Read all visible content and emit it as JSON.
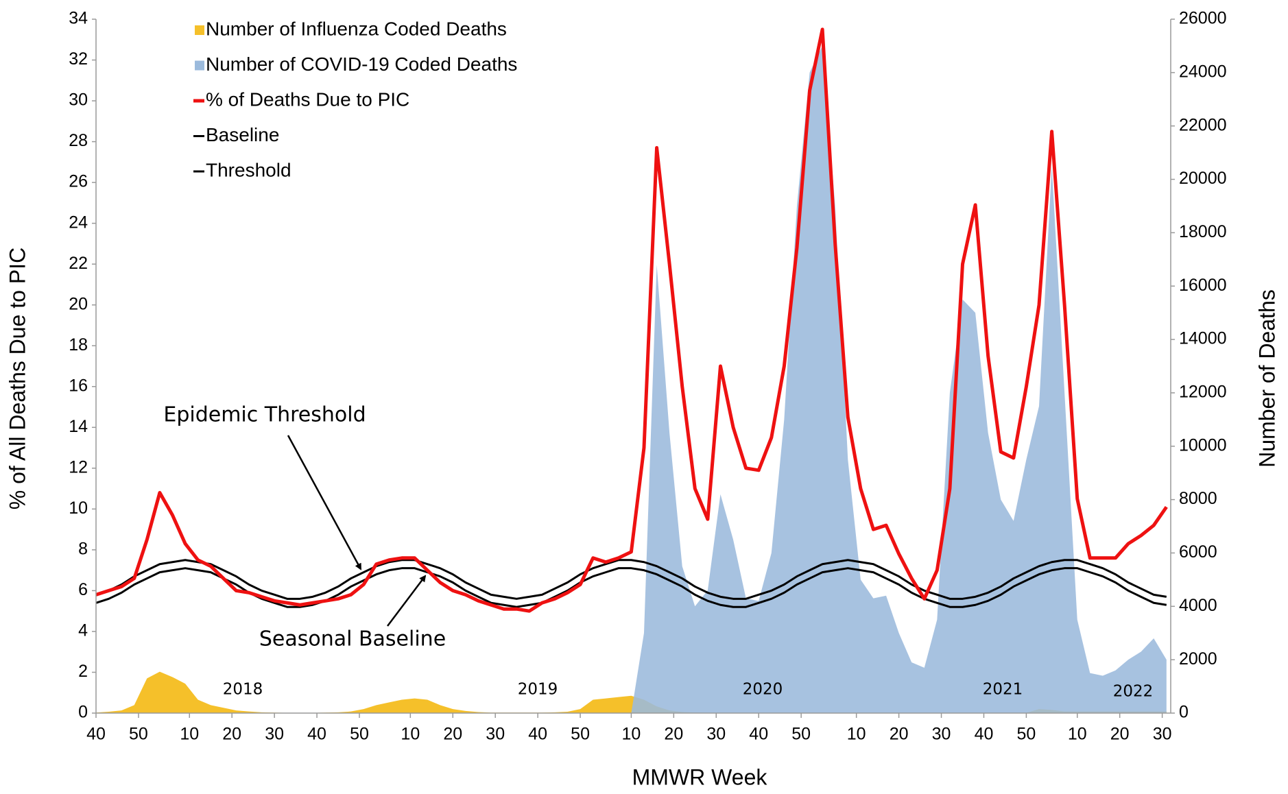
{
  "chart_data": {
    "type": "line",
    "x_label": "MMWR Week",
    "y_label": "% of All Deaths Due to PIC",
    "y2_label": "Number of Deaths",
    "legend": "upper left",
    "grid": false,
    "xlim": [
      0,
      253
    ],
    "ylim": [
      0,
      34
    ],
    "y2lim": [
      0,
      26000
    ],
    "yticks": [
      0,
      2,
      4,
      6,
      8,
      10,
      12,
      14,
      16,
      18,
      20,
      22,
      24,
      26,
      28,
      30,
      32,
      34
    ],
    "y2ticks": [
      0,
      2000,
      4000,
      6000,
      8000,
      10000,
      12000,
      14000,
      16000,
      18000,
      20000,
      22000,
      24000,
      26000
    ],
    "xticks": [
      {
        "value": 0,
        "label": "40"
      },
      {
        "value": 10,
        "label": "50"
      },
      {
        "value": 22,
        "label": "10"
      },
      {
        "value": 32,
        "label": "20"
      },
      {
        "value": 42,
        "label": "30"
      },
      {
        "value": 52,
        "label": "40"
      },
      {
        "value": 62,
        "label": "50"
      },
      {
        "value": 74,
        "label": "10"
      },
      {
        "value": 84,
        "label": "20"
      },
      {
        "value": 94,
        "label": "30"
      },
      {
        "value": 104,
        "label": "40"
      },
      {
        "value": 114,
        "label": "50"
      },
      {
        "value": 126,
        "label": "10"
      },
      {
        "value": 136,
        "label": "20"
      },
      {
        "value": 146,
        "label": "30"
      },
      {
        "value": 156,
        "label": "40"
      },
      {
        "value": 166,
        "label": "50"
      },
      {
        "value": 179,
        "label": "10"
      },
      {
        "value": 189,
        "label": "20"
      },
      {
        "value": 199,
        "label": "30"
      },
      {
        "value": 209,
        "label": "40"
      },
      {
        "value": 219,
        "label": "50"
      },
      {
        "value": 231,
        "label": "10"
      },
      {
        "value": 241,
        "label": "20"
      },
      {
        "value": 251,
        "label": "30"
      }
    ],
    "annotations": [
      "Epidemic Threshold",
      "Seasonal Baseline",
      "2018",
      "2019",
      "2020",
      "2021",
      "2022"
    ],
    "x": [
      0,
      3,
      6,
      9,
      12,
      15,
      18,
      21,
      24,
      27,
      30,
      33,
      36,
      39,
      42,
      45,
      48,
      51,
      54,
      57,
      60,
      63,
      66,
      69,
      72,
      75,
      78,
      81,
      84,
      87,
      90,
      93,
      96,
      99,
      102,
      105,
      108,
      111,
      114,
      117,
      120,
      123,
      126,
      129,
      132,
      135,
      138,
      141,
      144,
      147,
      150,
      153,
      156,
      159,
      162,
      165,
      168,
      171,
      174,
      177,
      180,
      183,
      186,
      189,
      192,
      195,
      198,
      201,
      204,
      207,
      210,
      213,
      216,
      219,
      222,
      225,
      228,
      231,
      234,
      237,
      240,
      243,
      246,
      249,
      252
    ],
    "series": [
      {
        "name": "Number of Influenza Coded Deaths",
        "type": "area",
        "axis": "y2",
        "color": "#f5c02a",
        "values": [
          20,
          50,
          100,
          300,
          1300,
          1550,
          1350,
          1100,
          500,
          300,
          200,
          100,
          60,
          30,
          20,
          10,
          10,
          10,
          20,
          30,
          60,
          150,
          300,
          400,
          500,
          550,
          500,
          300,
          150,
          80,
          40,
          20,
          20,
          20,
          20,
          20,
          30,
          50,
          150,
          500,
          550,
          600,
          650,
          500,
          250,
          100,
          40,
          20,
          10,
          10,
          10,
          10,
          10,
          10,
          10,
          10,
          10,
          10,
          10,
          10,
          10,
          10,
          10,
          10,
          10,
          10,
          10,
          10,
          10,
          10,
          10,
          10,
          10,
          10,
          150,
          120,
          60,
          60,
          60,
          60,
          60,
          60,
          60,
          60,
          60
        ]
      },
      {
        "name": "Number of COVID-19 Coded Deaths",
        "type": "area",
        "axis": "y2",
        "color": "#9bbadc",
        "values": [
          0,
          0,
          0,
          0,
          0,
          0,
          0,
          0,
          0,
          0,
          0,
          0,
          0,
          0,
          0,
          0,
          0,
          0,
          0,
          0,
          0,
          0,
          0,
          0,
          0,
          0,
          0,
          0,
          0,
          0,
          0,
          0,
          0,
          0,
          0,
          0,
          0,
          0,
          0,
          0,
          0,
          0,
          0,
          3000,
          16800,
          10500,
          5500,
          4000,
          4600,
          8200,
          6500,
          4300,
          4200,
          6000,
          11000,
          19000,
          24000,
          25000,
          19000,
          9500,
          5000,
          4300,
          4400,
          3000,
          1900,
          1700,
          3500,
          12000,
          15500,
          15000,
          10500,
          8000,
          7200,
          9500,
          11500,
          20500,
          12000,
          3500,
          1500,
          1400,
          1600,
          2000,
          2300,
          2800,
          2000
        ]
      },
      {
        "name": "% of Deaths Due to PIC",
        "type": "line",
        "axis": "y",
        "color": "#ee1111",
        "values": [
          5.8,
          6.0,
          6.2,
          6.6,
          8.5,
          10.8,
          9.7,
          8.3,
          7.5,
          7.2,
          6.6,
          6.0,
          5.9,
          5.7,
          5.5,
          5.4,
          5.3,
          5.4,
          5.5,
          5.6,
          5.8,
          6.3,
          7.3,
          7.5,
          7.6,
          7.6,
          7.0,
          6.4,
          6.0,
          5.8,
          5.5,
          5.3,
          5.1,
          5.1,
          5.0,
          5.4,
          5.6,
          5.9,
          6.3,
          7.6,
          7.4,
          7.6,
          7.9,
          13.0,
          27.7,
          22.0,
          16.0,
          11.0,
          9.5,
          17.0,
          14.0,
          12.0,
          11.9,
          13.5,
          17.0,
          22.8,
          30.5,
          33.5,
          23.0,
          14.5,
          11.0,
          9.0,
          9.2,
          7.8,
          6.6,
          5.6,
          7.0,
          11.0,
          22.0,
          24.9,
          17.5,
          12.8,
          12.5,
          16.0,
          20.0,
          28.5,
          20.0,
          10.5,
          7.6,
          7.6,
          7.6,
          8.3,
          8.7,
          9.2,
          10.1
        ]
      },
      {
        "name": "Baseline",
        "type": "line",
        "axis": "y",
        "color": "#000000",
        "values": [
          5.4,
          5.6,
          5.9,
          6.3,
          6.6,
          6.9,
          7.0,
          7.1,
          7.0,
          6.9,
          6.6,
          6.3,
          5.9,
          5.6,
          5.4,
          5.2,
          5.2,
          5.3,
          5.5,
          5.8,
          6.2,
          6.5,
          6.8,
          7.0,
          7.1,
          7.1,
          6.9,
          6.7,
          6.4,
          6.0,
          5.7,
          5.4,
          5.3,
          5.2,
          5.3,
          5.4,
          5.7,
          6.0,
          6.4,
          6.7,
          6.9,
          7.1,
          7.1,
          7.0,
          6.8,
          6.5,
          6.2,
          5.8,
          5.5,
          5.3,
          5.2,
          5.2,
          5.4,
          5.6,
          5.9,
          6.3,
          6.6,
          6.9,
          7.0,
          7.1,
          7.0,
          6.9,
          6.6,
          6.3,
          5.9,
          5.6,
          5.4,
          5.2,
          5.2,
          5.3,
          5.5,
          5.8,
          6.2,
          6.5,
          6.8,
          7.0,
          7.1,
          7.1,
          6.9,
          6.7,
          6.4,
          6.0,
          5.7,
          5.4,
          5.3
        ]
      },
      {
        "name": "Threshold",
        "type": "line",
        "axis": "y",
        "color": "#000000",
        "values": [
          5.8,
          6.0,
          6.3,
          6.7,
          7.0,
          7.3,
          7.4,
          7.5,
          7.4,
          7.3,
          7.0,
          6.7,
          6.3,
          6.0,
          5.8,
          5.6,
          5.6,
          5.7,
          5.9,
          6.2,
          6.6,
          6.9,
          7.2,
          7.4,
          7.5,
          7.5,
          7.3,
          7.1,
          6.8,
          6.4,
          6.1,
          5.8,
          5.7,
          5.6,
          5.7,
          5.8,
          6.1,
          6.4,
          6.8,
          7.1,
          7.3,
          7.5,
          7.5,
          7.4,
          7.2,
          6.9,
          6.6,
          6.2,
          5.9,
          5.7,
          5.6,
          5.6,
          5.8,
          6.0,
          6.3,
          6.7,
          7.0,
          7.3,
          7.4,
          7.5,
          7.4,
          7.3,
          7.0,
          6.7,
          6.3,
          6.0,
          5.8,
          5.6,
          5.6,
          5.7,
          5.9,
          6.2,
          6.6,
          6.9,
          7.2,
          7.4,
          7.5,
          7.5,
          7.3,
          7.1,
          6.8,
          6.4,
          6.1,
          5.8,
          5.7
        ]
      }
    ]
  }
}
